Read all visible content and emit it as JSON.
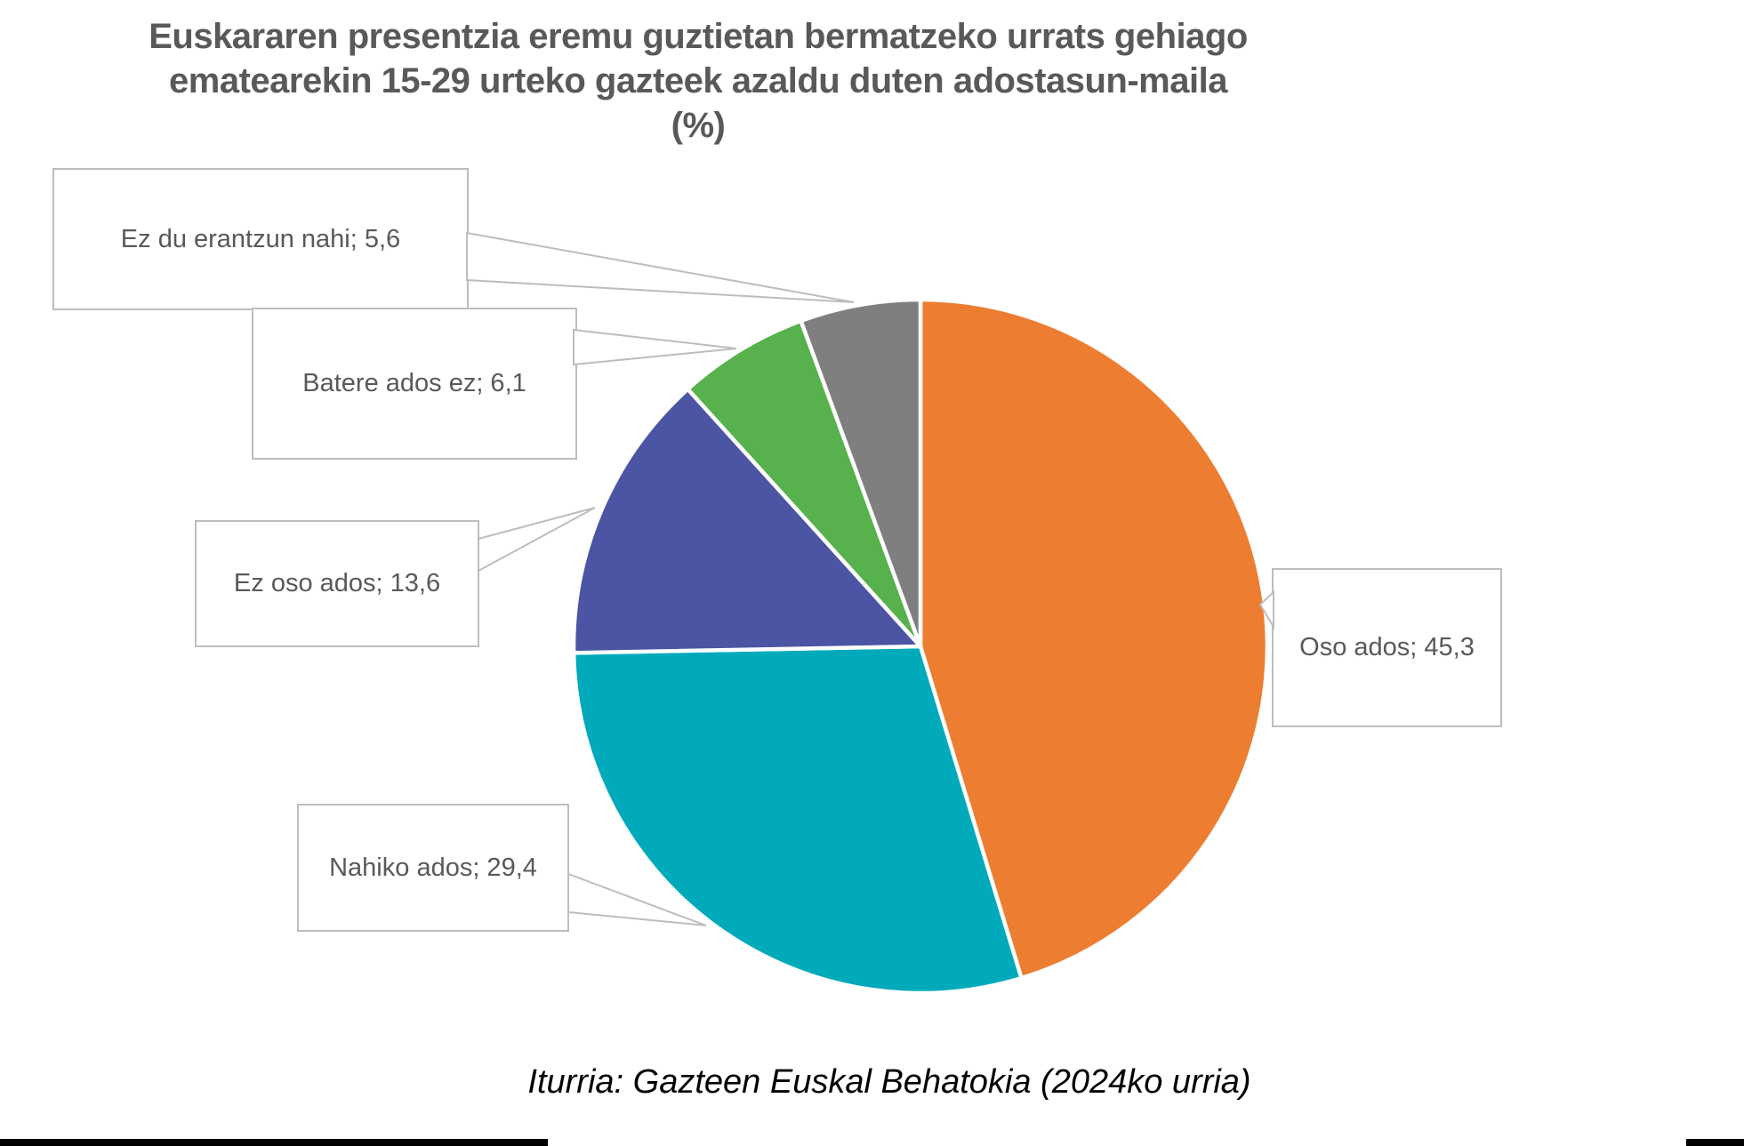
{
  "title": {
    "line1": "Euskararen presentzia eremu guztietan bermatzeko urrats gehiago",
    "line2": "ematearekin 15-29 urteko gazteek azaldu duten adostasun-maila (%)"
  },
  "source": "Iturria: Gazteen Euskal Behatokia (2024ko urria)",
  "chart_data": {
    "type": "pie",
    "title": "Euskararen presentzia eremu guztietan bermatzeko urrats gehiago ematearekin 15-29 urteko gazteek azaldu duten adostasun-maila (%)",
    "unit": "%",
    "start_angle_deg": 0,
    "direction": "clockwise",
    "legend_position": "none",
    "categories": [
      "Oso ados",
      "Nahiko ados",
      "Ez oso ados",
      "Batere ados ez",
      "Ez du erantzun nahi"
    ],
    "values": [
      45.3,
      29.4,
      13.6,
      6.1,
      5.6
    ],
    "labels": [
      "Oso ados; 45,3",
      "Nahiko ados; 29,4",
      "Ez oso ados; 13,6",
      "Batere ados ez; 6,1",
      "Ez du erantzun nahi; 5,6"
    ],
    "colors": [
      "#ED7D31",
      "#00AABB",
      "#4B55A4",
      "#57B14C",
      "#7F7F7F"
    ],
    "slice_gap_color": "#FFFFFF",
    "callout_border_color": "#BDBDBD",
    "label_text_color": "#595959"
  }
}
